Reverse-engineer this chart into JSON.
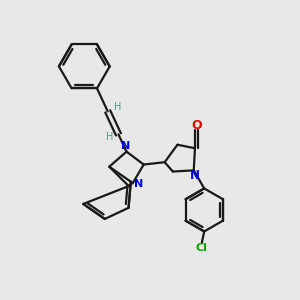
{
  "bg_color": "#e8e8e8",
  "bond_color": "#1a1a1a",
  "N_color": "#0000ee",
  "O_color": "#ee0000",
  "Cl_color": "#00aa00",
  "H_color": "#4a9a8a",
  "line_width": 1.6,
  "figsize": [
    3.0,
    3.0
  ],
  "dpi": 100,
  "xlim": [
    0,
    10
  ],
  "ylim": [
    0,
    10
  ]
}
